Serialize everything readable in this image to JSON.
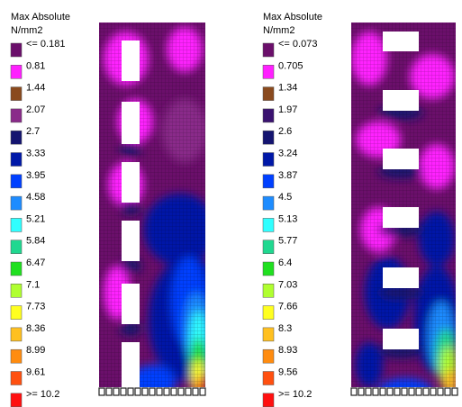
{
  "panels": [
    {
      "legend": {
        "title": "Max Absolute",
        "unit": "N/mm2",
        "entries": [
          {
            "label": "<= 0.181",
            "color": "#6b0f6b"
          },
          {
            "label": "0.81",
            "color": "#ff20ff"
          },
          {
            "label": "1.44",
            "color": "#8a4a1e"
          },
          {
            "label": "2.07",
            "color": "#8a2a8a"
          },
          {
            "label": "2.7",
            "color": "#141470"
          },
          {
            "label": "3.33",
            "color": "#0018a8"
          },
          {
            "label": "3.95",
            "color": "#0040ff"
          },
          {
            "label": "4.58",
            "color": "#1e8cff"
          },
          {
            "label": "5.21",
            "color": "#30ffff"
          },
          {
            "label": "5.84",
            "color": "#20d890"
          },
          {
            "label": "6.47",
            "color": "#20e020"
          },
          {
            "label": "7.1",
            "color": "#b0ff30"
          },
          {
            "label": "7.73",
            "color": "#ffff20"
          },
          {
            "label": "8.36",
            "color": "#ffc020"
          },
          {
            "label": "8.99",
            "color": "#ff8c10"
          },
          {
            "label": "9.61",
            "color": "#ff5010"
          },
          {
            "label": ">= 10.2",
            "color": "#ff1010"
          }
        ]
      }
    },
    {
      "legend": {
        "title": "Max Absolute",
        "unit": "N/mm2",
        "entries": [
          {
            "label": "<= 0.073",
            "color": "#6b0f6b"
          },
          {
            "label": "0.705",
            "color": "#ff20ff"
          },
          {
            "label": "1.34",
            "color": "#8a4a1e"
          },
          {
            "label": "1.97",
            "color": "#3a1270"
          },
          {
            "label": "2.6",
            "color": "#141470"
          },
          {
            "label": "3.24",
            "color": "#0018a8"
          },
          {
            "label": "3.87",
            "color": "#0040ff"
          },
          {
            "label": "4.5",
            "color": "#1e8cff"
          },
          {
            "label": "5.13",
            "color": "#30ffff"
          },
          {
            "label": "5.77",
            "color": "#20d890"
          },
          {
            "label": "6.4",
            "color": "#20e020"
          },
          {
            "label": "7.03",
            "color": "#b0ff30"
          },
          {
            "label": "7.66",
            "color": "#ffff20"
          },
          {
            "label": "8.3",
            "color": "#ffc020"
          },
          {
            "label": "8.93",
            "color": "#ff8c10"
          },
          {
            "label": "9.56",
            "color": "#ff5010"
          },
          {
            "label": ">= 10.2",
            "color": "#ff1010"
          }
        ]
      }
    }
  ]
}
